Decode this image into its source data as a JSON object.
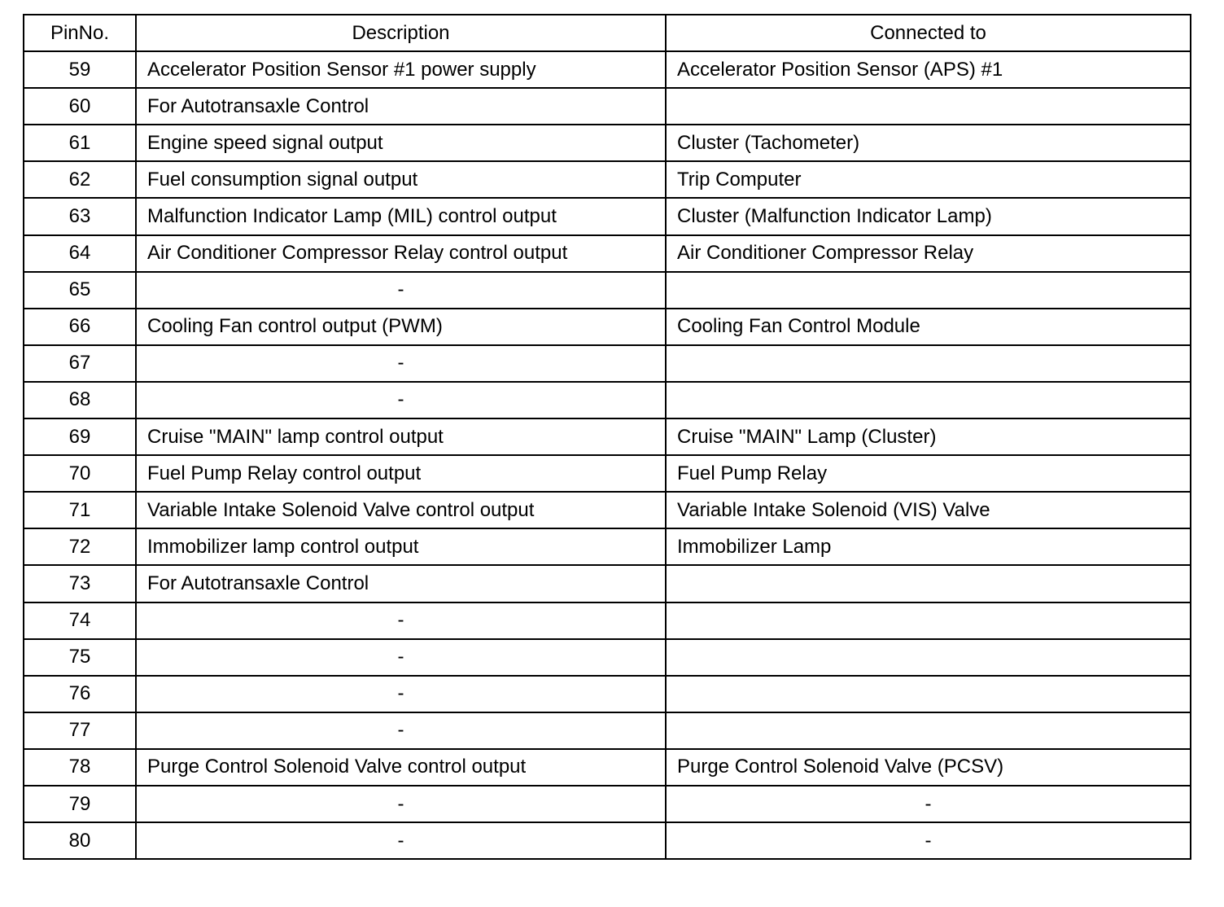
{
  "headers": [
    "PinNo.",
    "Description",
    "Connected to"
  ],
  "rows": [
    {
      "pin": "59",
      "description": "Accelerator Position Sensor #1 power supply",
      "connected_to": "Accelerator Position Sensor (APS) #1"
    },
    {
      "pin": "60",
      "description": "For Autotransaxle Control",
      "connected_to": ""
    },
    {
      "pin": "61",
      "description": "Engine speed signal output",
      "connected_to": "Cluster (Tachometer)"
    },
    {
      "pin": "62",
      "description": "Fuel consumption signal output",
      "connected_to": "Trip Computer"
    },
    {
      "pin": "63",
      "description": "Malfunction Indicator Lamp (MIL) control output",
      "connected_to": "Cluster (Malfunction Indicator Lamp)"
    },
    {
      "pin": "64",
      "description": "Air Conditioner Compressor Relay control output",
      "connected_to": "Air Conditioner Compressor Relay"
    },
    {
      "pin": "65",
      "description": "-",
      "connected_to": ""
    },
    {
      "pin": "66",
      "description": "Cooling Fan control output (PWM)",
      "connected_to": "Cooling Fan Control Module"
    },
    {
      "pin": "67",
      "description": "-",
      "connected_to": ""
    },
    {
      "pin": "68",
      "description": "-",
      "connected_to": ""
    },
    {
      "pin": "69",
      "description": "Cruise \"MAIN\" lamp control output",
      "connected_to": "Cruise \"MAIN\" Lamp (Cluster)"
    },
    {
      "pin": "70",
      "description": "Fuel Pump Relay control output",
      "connected_to": "Fuel Pump Relay"
    },
    {
      "pin": "71",
      "description": "Variable Intake Solenoid Valve control output",
      "connected_to": "Variable Intake Solenoid (VIS) Valve"
    },
    {
      "pin": "72",
      "description": "Immobilizer lamp control output",
      "connected_to": "Immobilizer Lamp"
    },
    {
      "pin": "73",
      "description": "For Autotransaxle Control",
      "connected_to": ""
    },
    {
      "pin": "74",
      "description": "-",
      "connected_to": ""
    },
    {
      "pin": "75",
      "description": "-",
      "connected_to": ""
    },
    {
      "pin": "76",
      "description": "-",
      "connected_to": ""
    },
    {
      "pin": "77",
      "description": "-",
      "connected_to": ""
    },
    {
      "pin": "78",
      "description": "Purge Control Solenoid Valve control output",
      "connected_to": "Purge Control Solenoid Valve (PCSV)"
    },
    {
      "pin": "79",
      "description": "-",
      "connected_to": "-"
    },
    {
      "pin": "80",
      "description": "-",
      "connected_to": "-"
    }
  ]
}
